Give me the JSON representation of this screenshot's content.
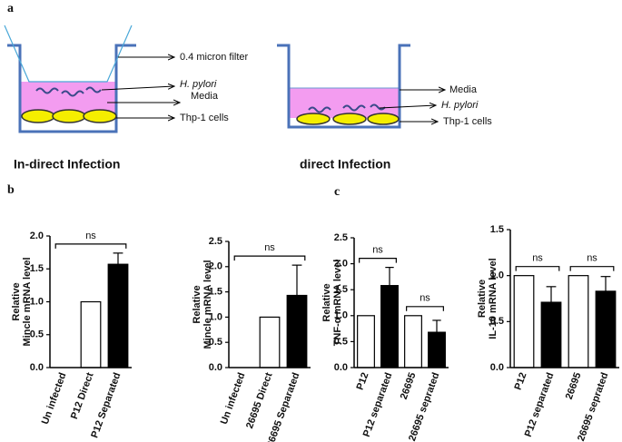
{
  "panels": {
    "a": "a",
    "b": "b",
    "c": "c"
  },
  "diagrams": [
    {
      "caption": "In-direct Infection",
      "labels": [
        "0.4 micron filter",
        "H. pylori",
        "Media",
        "Thp-1 cells"
      ]
    },
    {
      "caption": "direct Infection",
      "labels": [
        "Media",
        "H. pylori",
        "Thp-1 cells"
      ]
    }
  ],
  "chart_data": [
    {
      "type": "bar",
      "y_label": [
        "Relative",
        "Mincle mRNA level"
      ],
      "categories": [
        "Un infected",
        "P12 Direct",
        "P12 Separated"
      ],
      "values": [
        0,
        1,
        1.57
      ],
      "errors": [
        null,
        null,
        0.17
      ],
      "colors": [
        "#ffffff",
        "#ffffff",
        "#000000"
      ],
      "ylim": [
        0,
        2
      ],
      "yticks": [
        {
          "value": 0,
          "label": "0.0"
        },
        0.5,
        {
          "value": 1,
          "label": "1.0"
        },
        1.5,
        {
          "value": 2,
          "label": "2.0"
        }
      ],
      "annotations": [
        {
          "text": "ns",
          "between": [
            0,
            2
          ]
        }
      ]
    },
    {
      "type": "bar",
      "y_label": [
        "Relative",
        "Mincle mRNA level"
      ],
      "categories": [
        "Un infected",
        "26695 Direct",
        "26695 Separated"
      ],
      "values": [
        0,
        1,
        1.43
      ],
      "errors": [
        null,
        null,
        0.6
      ],
      "colors": [
        "#ffffff",
        "#ffffff",
        "#000000"
      ],
      "ylim": [
        0,
        2.5
      ],
      "yticks": [
        {
          "value": 0,
          "label": "0.0"
        },
        0.5,
        {
          "value": 1,
          "label": "1.0"
        },
        1.5,
        {
          "value": 2,
          "label": "2.0"
        },
        2.5
      ],
      "annotations": [
        {
          "text": "ns",
          "between": [
            0,
            2
          ]
        }
      ]
    },
    {
      "type": "bar",
      "y_label": [
        "Relative",
        "TNF-α mRNA level"
      ],
      "categories": [
        "P12",
        "P12 separated",
        "26695",
        "26695 seprated"
      ],
      "values": [
        1,
        1.58,
        1,
        0.68
      ],
      "errors": [
        null,
        0.35,
        null,
        0.23
      ],
      "colors": [
        "#ffffff",
        "#000000",
        "#ffffff",
        "#000000"
      ],
      "ylim": [
        0,
        2.5
      ],
      "yticks": [
        {
          "value": 0,
          "label": "0.0"
        },
        0.5,
        {
          "value": 1,
          "label": "1.0"
        },
        1.5,
        {
          "value": 2,
          "label": "2.0"
        },
        2.5
      ],
      "annotations": [
        {
          "text": "ns",
          "between": [
            0,
            1
          ]
        },
        {
          "text": "ns",
          "between": [
            2,
            3
          ]
        }
      ]
    },
    {
      "type": "bar",
      "y_label": [
        "Relative",
        "IL-10 mRNA level"
      ],
      "categories": [
        "P12",
        "P12 separated",
        "26695",
        "26695 seprated"
      ],
      "values": [
        1,
        0.71,
        1,
        0.83
      ],
      "errors": [
        null,
        0.17,
        null,
        0.16
      ],
      "colors": [
        "#ffffff",
        "#000000",
        "#ffffff",
        "#000000"
      ],
      "ylim": [
        0,
        1.5
      ],
      "yticks": [
        {
          "value": 0,
          "label": "0.0"
        },
        0.5,
        {
          "value": 1,
          "label": "1.0"
        },
        1.5
      ],
      "annotations": [
        {
          "text": "ns",
          "between": [
            0,
            1
          ]
        },
        {
          "text": "ns",
          "between": [
            2,
            3
          ]
        }
      ]
    }
  ]
}
